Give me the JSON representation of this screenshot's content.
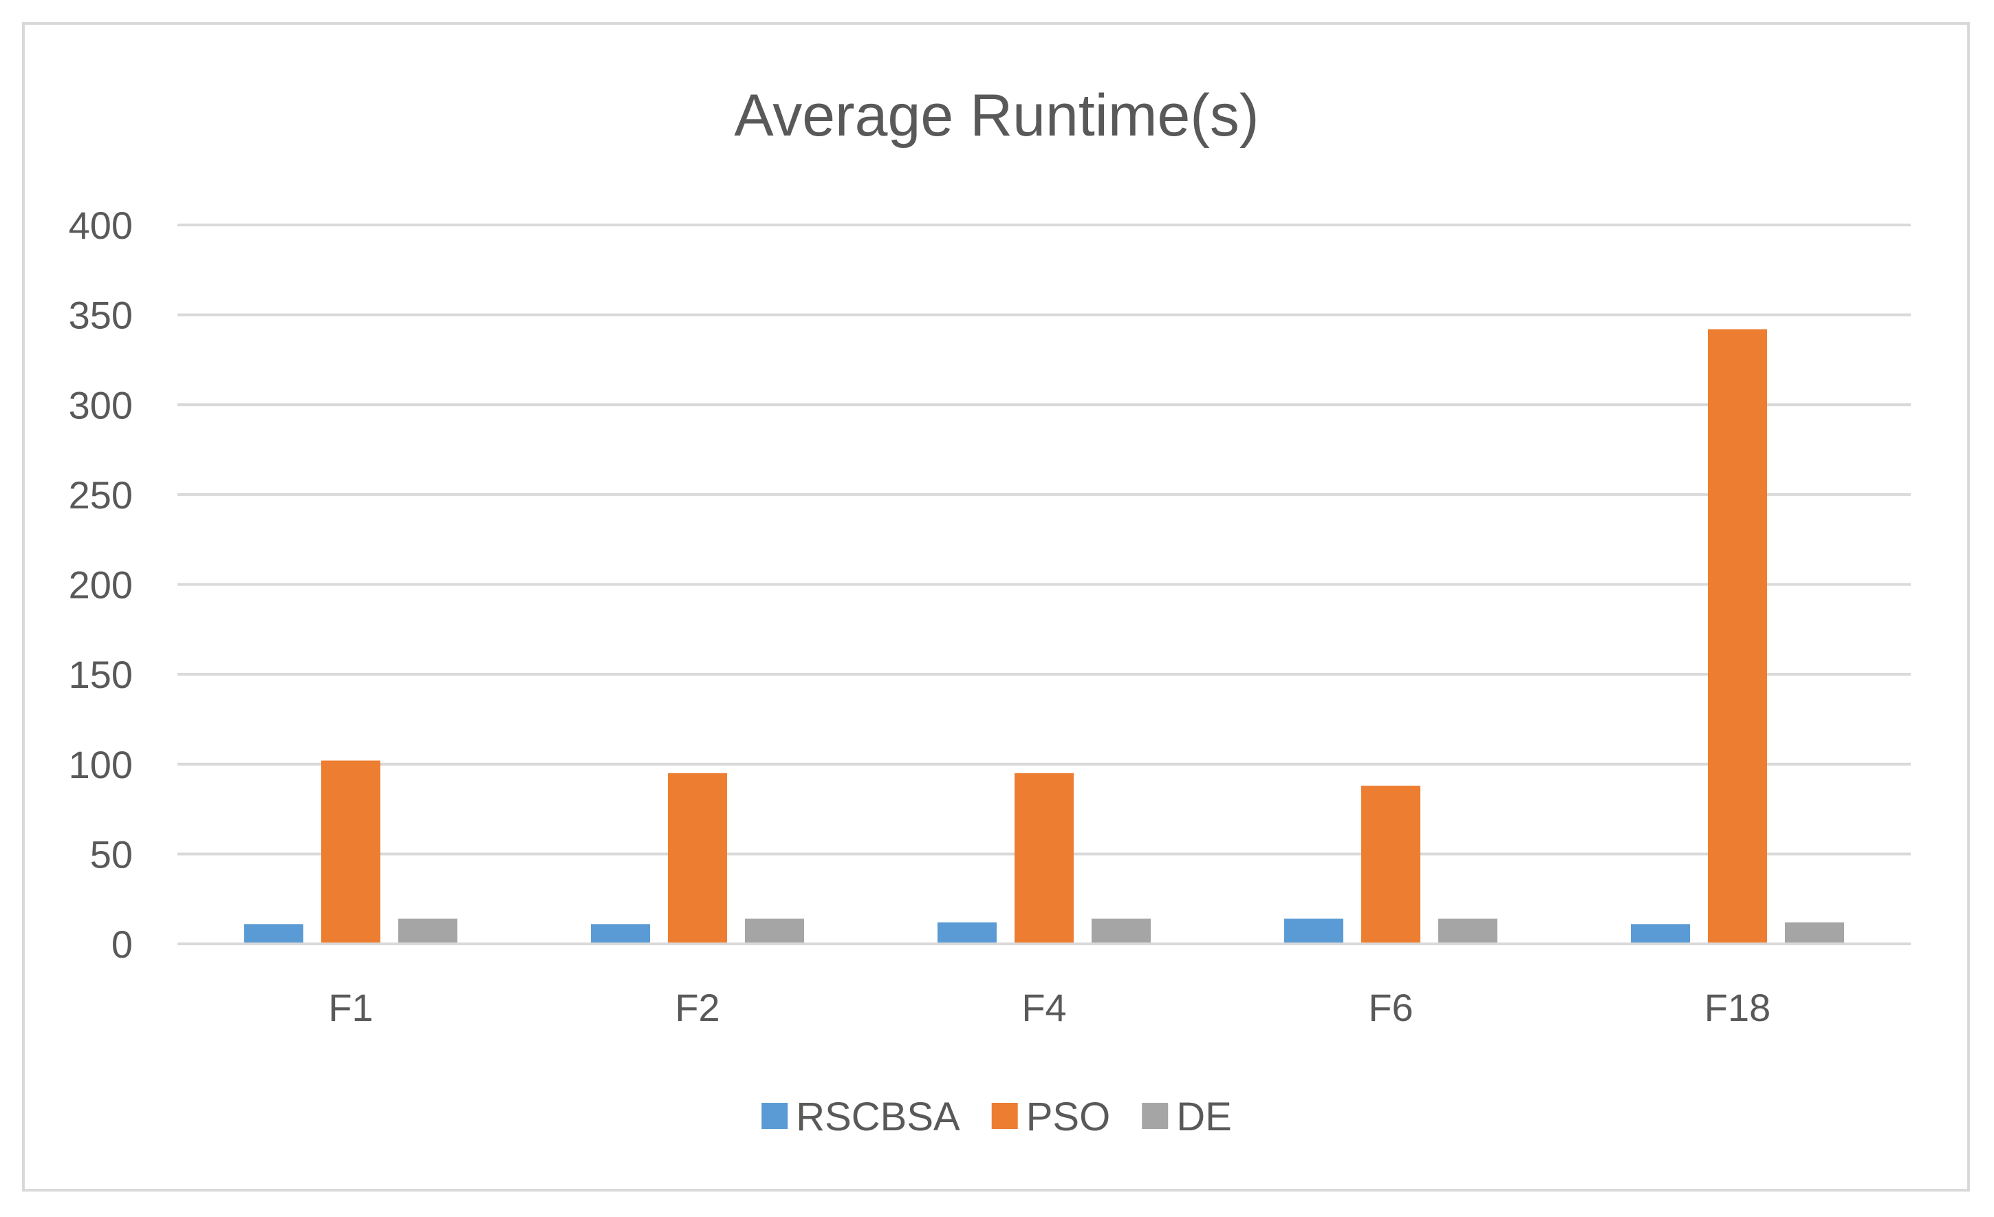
{
  "chart_data": {
    "type": "bar",
    "title": "Average Runtime(s)",
    "xlabel": "",
    "ylabel": "",
    "categories": [
      "F1",
      "F2",
      "F4",
      "F6",
      "F18"
    ],
    "series": [
      {
        "name": "RSCBSA",
        "color": "#5b9bd5",
        "values": [
          11,
          11,
          12,
          14,
          11
        ]
      },
      {
        "name": "PSO",
        "color": "#ed7d31",
        "values": [
          102,
          95,
          95,
          88,
          342
        ]
      },
      {
        "name": "DE",
        "color": "#a5a5a5",
        "values": [
          14,
          14,
          14,
          14,
          12
        ]
      }
    ],
    "ylim": [
      0,
      400
    ],
    "yticks": [
      "0",
      "50",
      "100",
      "150",
      "200",
      "250",
      "300",
      "350",
      "400"
    ],
    "grid": true,
    "gridline_color": "#d9d9d9",
    "legend_position": "bottom"
  }
}
